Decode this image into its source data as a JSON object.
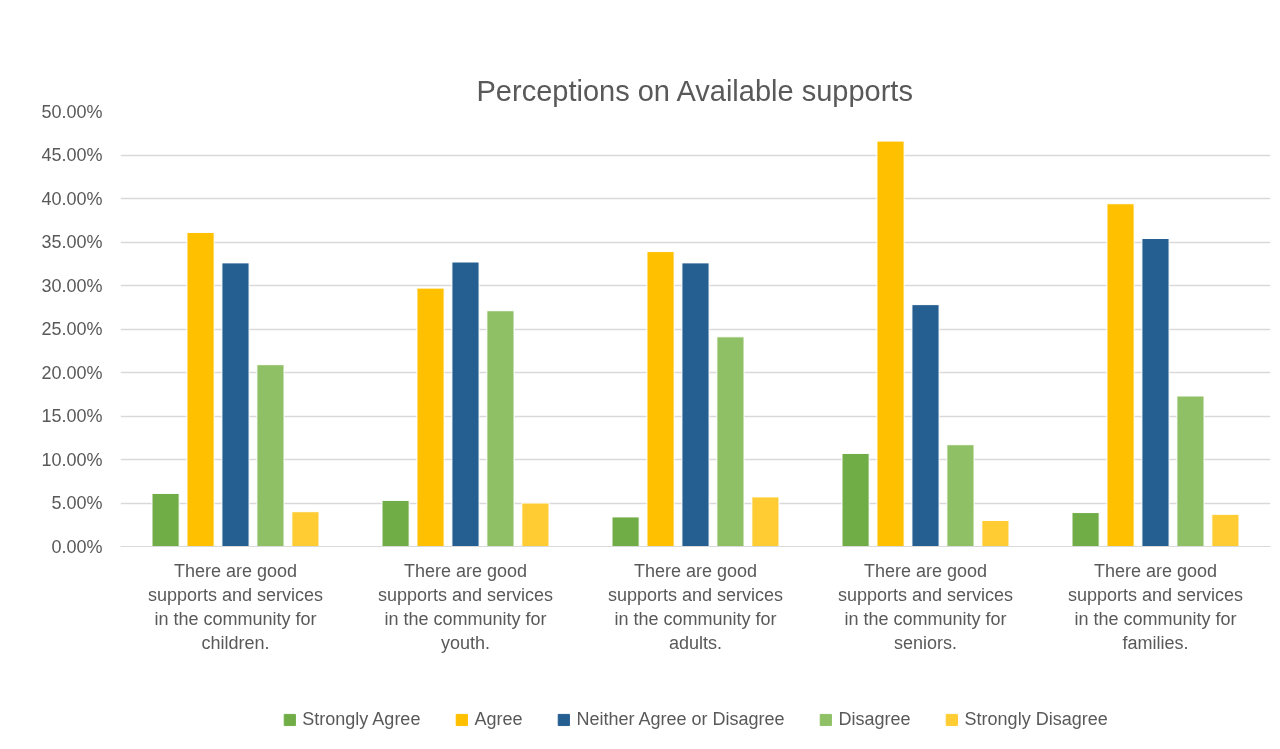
{
  "chart_data": {
    "type": "bar",
    "title": "Perceptions on Available supports",
    "categories": [
      "There are good supports and services in the community for children.",
      "There are good supports and services in the community for youth.",
      "There are good supports and services in the community for adults.",
      "There are good supports and services in the community for seniors.",
      "There are good supports and services in the community for families."
    ],
    "series": [
      {
        "name": "Strongly Agree",
        "color": "#70ad47",
        "values": [
          6.1,
          5.3,
          3.4,
          10.7,
          3.9
        ]
      },
      {
        "name": "Agree",
        "color": "#ffc000",
        "values": [
          36.1,
          29.7,
          33.9,
          46.6,
          39.4
        ]
      },
      {
        "name": "Neither Agree or Disagree",
        "color": "#255e91",
        "values": [
          32.6,
          32.7,
          32.6,
          27.8,
          35.4
        ]
      },
      {
        "name": "Disagree",
        "color": "#8fc066",
        "values": [
          20.9,
          27.1,
          24.1,
          11.7,
          17.3
        ]
      },
      {
        "name": "Strongly Disagree",
        "color": "#ffcd33",
        "values": [
          4.0,
          5.0,
          5.7,
          3.0,
          3.7
        ]
      }
    ],
    "ylim": [
      0,
      50
    ],
    "yticks": [
      {
        "value": 0,
        "label": "0.00%"
      },
      {
        "value": 5,
        "label": "5.00%"
      },
      {
        "value": 10,
        "label": "10.00%"
      },
      {
        "value": 15,
        "label": "15.00%"
      },
      {
        "value": 20,
        "label": "20.00%"
      },
      {
        "value": 25,
        "label": "25.00%"
      },
      {
        "value": 30,
        "label": "30.00%"
      },
      {
        "value": 35,
        "label": "35.00%"
      },
      {
        "value": 40,
        "label": "40.00%"
      },
      {
        "value": 45,
        "label": "45.00%"
      },
      {
        "value": 50,
        "label": "50.00%"
      }
    ],
    "grid": "y",
    "legend": "bottom"
  }
}
